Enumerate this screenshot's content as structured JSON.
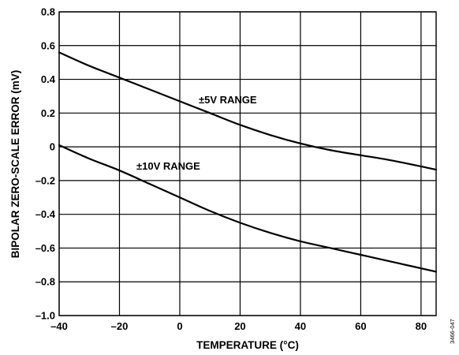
{
  "chart_data": {
    "type": "line",
    "xlabel": "TEMPERATURE (°C)",
    "ylabel": "BIPOLAR ZERO-SCALE ERROR (mV)",
    "xlim": [
      -40,
      85
    ],
    "ylim": [
      -1.0,
      0.8
    ],
    "x_ticks": [
      -40,
      -20,
      0,
      20,
      40,
      60,
      80
    ],
    "x_tick_labels": [
      "–40",
      "–20",
      "0",
      "20",
      "40",
      "60",
      "80"
    ],
    "y_ticks": [
      0.8,
      0.6,
      0.4,
      0.2,
      0,
      -0.2,
      -0.4,
      -0.6,
      -0.8,
      -1.0
    ],
    "y_tick_labels": [
      "0.8",
      "0.6",
      "0.4",
      "0.2",
      "0",
      "–0.2",
      "–0.4",
      "–0.6",
      "–0.8",
      "–1.0"
    ],
    "grid": true,
    "series": [
      {
        "name": "±5V RANGE",
        "x": [
          -40,
          -30,
          -20,
          -10,
          0,
          10,
          20,
          30,
          40,
          50,
          60,
          70,
          85
        ],
        "y": [
          0.56,
          0.48,
          0.41,
          0.34,
          0.27,
          0.2,
          0.13,
          0.07,
          0.02,
          -0.02,
          -0.05,
          -0.08,
          -0.135
        ]
      },
      {
        "name": "±10V RANGE",
        "x": [
          -40,
          -30,
          -20,
          -10,
          0,
          10,
          20,
          30,
          40,
          50,
          60,
          70,
          85
        ],
        "y": [
          0.01,
          -0.07,
          -0.14,
          -0.22,
          -0.3,
          -0.38,
          -0.45,
          -0.51,
          -0.56,
          -0.6,
          -0.64,
          -0.68,
          -0.74
        ]
      }
    ],
    "annotations": [
      "±5V RANGE",
      "±10V RANGE"
    ],
    "figure_id": "3466-047"
  }
}
